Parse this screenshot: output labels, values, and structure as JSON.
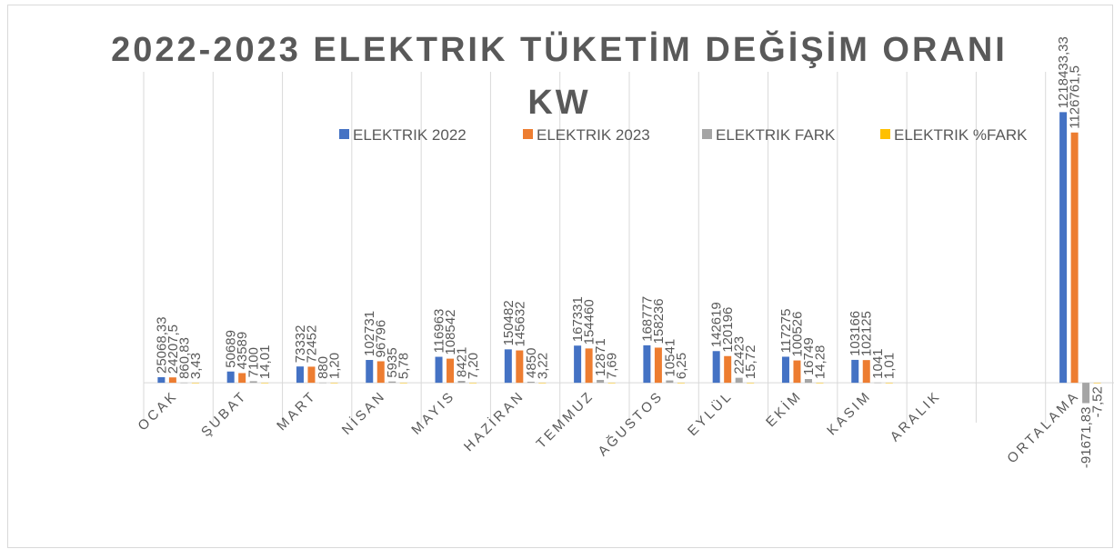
{
  "chart_data": {
    "type": "bar",
    "title": "2022-2023 ELEKTRIK TÜKETİM DEĞİŞİM ORANI KW",
    "categories": [
      "OCAK",
      "ŞUBAT",
      "MART",
      "NİSAN",
      "MAYIS",
      "HAZİRAN",
      "TEMMUZ",
      "AĞUSTOS",
      "EYLÜL",
      "EKİM",
      "KASIM",
      "ARALIK",
      null,
      "ORTALAMA"
    ],
    "series": [
      {
        "name": "ELEKTRIK 2022",
        "color": "#4472c4",
        "values": [
          25068.33,
          50689,
          73332,
          102731,
          116963,
          150482,
          167331,
          168777,
          142619,
          117275,
          103166,
          null,
          null,
          1218433.33
        ],
        "value_labels": [
          "25068,33",
          "50689",
          "73332",
          "102731",
          "116963",
          "150482",
          "167331",
          "168777",
          "142619",
          "117275",
          "103166",
          null,
          null,
          "1218433,33"
        ]
      },
      {
        "name": "ELEKTRIK 2023",
        "color": "#ed7d31",
        "values": [
          24207.5,
          43589,
          72452,
          96796,
          108542,
          145632,
          154460,
          158236,
          120196,
          100526,
          102125,
          null,
          null,
          1126761.5
        ],
        "value_labels": [
          "24207,5",
          "43589",
          "72452",
          "96796",
          "108542",
          "145632",
          "154460",
          "158236",
          "120196",
          "100526",
          "102125",
          null,
          null,
          "1126761,5"
        ]
      },
      {
        "name": "ELEKTRIK FARK",
        "color": "#a5a5a5",
        "values": [
          860.83,
          7100,
          880,
          5935,
          8421,
          4850,
          12871,
          10541,
          22423,
          16749,
          1041,
          null,
          null,
          -91671.83
        ],
        "value_labels": [
          "860,83",
          "7100",
          "880",
          "5935",
          "8421",
          "4850",
          "12871",
          "10541",
          "22423",
          "16749",
          "1041",
          null,
          null,
          "-91671,83"
        ]
      },
      {
        "name": "ELEKTRIK %FARK",
        "color": "#ffc000",
        "values": [
          3.43,
          14.01,
          1.2,
          5.78,
          7.2,
          3.22,
          7.69,
          6.25,
          15.72,
          14.28,
          1.01,
          null,
          null,
          -7.52
        ],
        "value_labels": [
          "3,43",
          "14,01",
          "1,20",
          "5,78",
          "7,20",
          "3,22",
          "7,69",
          "6,25",
          "15,72",
          "14,28",
          "1,01",
          null,
          null,
          "-7,52"
        ]
      }
    ],
    "ylim": [
      -200000,
      1400000
    ],
    "legend": "top"
  }
}
